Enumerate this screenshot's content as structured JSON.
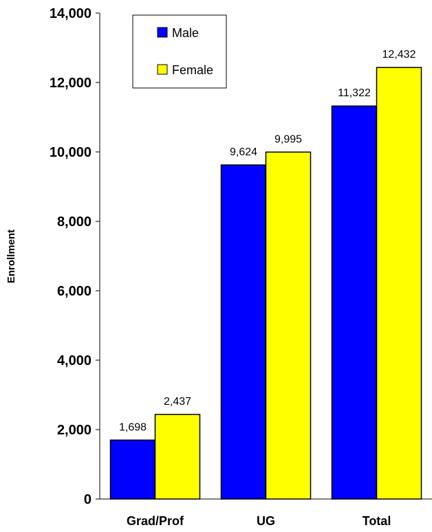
{
  "chart_data": {
    "type": "bar",
    "title": "",
    "xlabel": "",
    "ylabel": "Enrollment",
    "categories": [
      "Grad/Prof",
      "UG",
      "Total"
    ],
    "series": [
      {
        "name": "Male",
        "color": "#0000FF",
        "values": [
          1698,
          9624,
          11322
        ],
        "labels": [
          "1,698",
          "9,624",
          "11,322"
        ]
      },
      {
        "name": "Female",
        "color": "#FFFF00",
        "values": [
          2437,
          9995,
          12432
        ],
        "labels": [
          "2,437",
          "9,995",
          "12,432"
        ]
      }
    ],
    "ylim": [
      0,
      14000
    ],
    "yticks": [
      0,
      2000,
      4000,
      6000,
      8000,
      10000,
      12000,
      14000
    ],
    "ytick_labels": [
      "0",
      "2,000",
      "4,000",
      "6,000",
      "8,000",
      "10,000",
      "12,000",
      "14,000"
    ],
    "grid": false,
    "legend": "top-left"
  }
}
